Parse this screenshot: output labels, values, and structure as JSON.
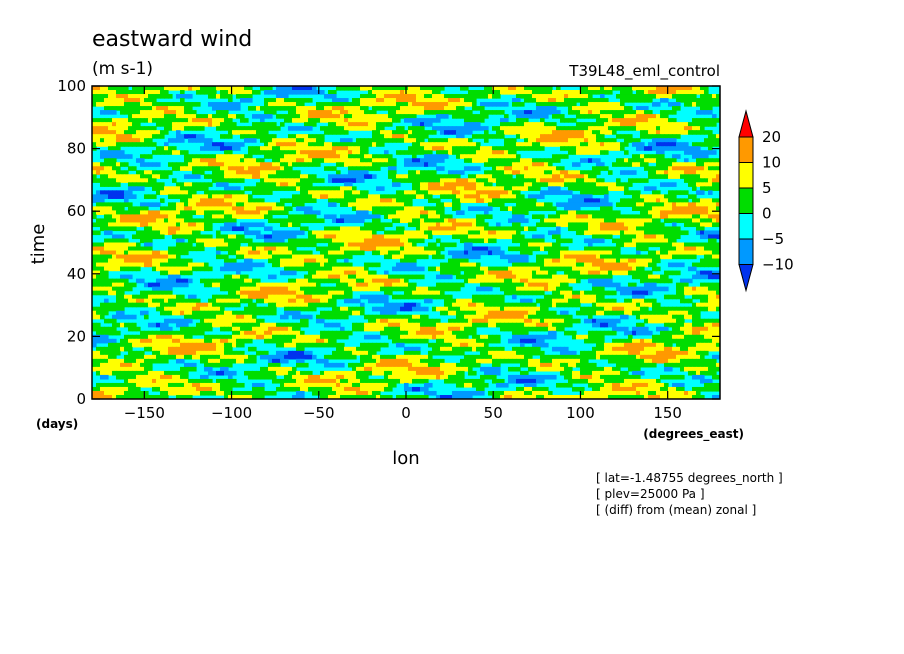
{
  "chart_data": {
    "type": "heatmap",
    "title": "eastward wind",
    "units": "(m s-1)",
    "subtitle_right": "T39L48_eml_control",
    "xlabel": "lon",
    "xunits": "(degrees_east)",
    "ylabel": "time",
    "yunits": "(days)",
    "xlim": [
      -180,
      180
    ],
    "ylim": [
      0,
      100
    ],
    "xticks": [
      -150,
      -100,
      -50,
      0,
      50,
      100,
      150
    ],
    "yticks": [
      0,
      20,
      40,
      60,
      80,
      100
    ],
    "grid": false,
    "legend": "right",
    "colorbar": {
      "levels": [
        "20",
        "10",
        "5",
        "0",
        "-5",
        "-10"
      ],
      "colors": [
        "#ff0000",
        "#ff9900",
        "#ffff00",
        "#00dd00",
        "#00ffff",
        "#0099ff",
        "#0033ee"
      ]
    },
    "annotations": [
      "[ lat=-1.48755 degrees_north ]",
      "[ plev=25000 Pa ]",
      "[ (diff) from (mean) zonal ]"
    ]
  }
}
